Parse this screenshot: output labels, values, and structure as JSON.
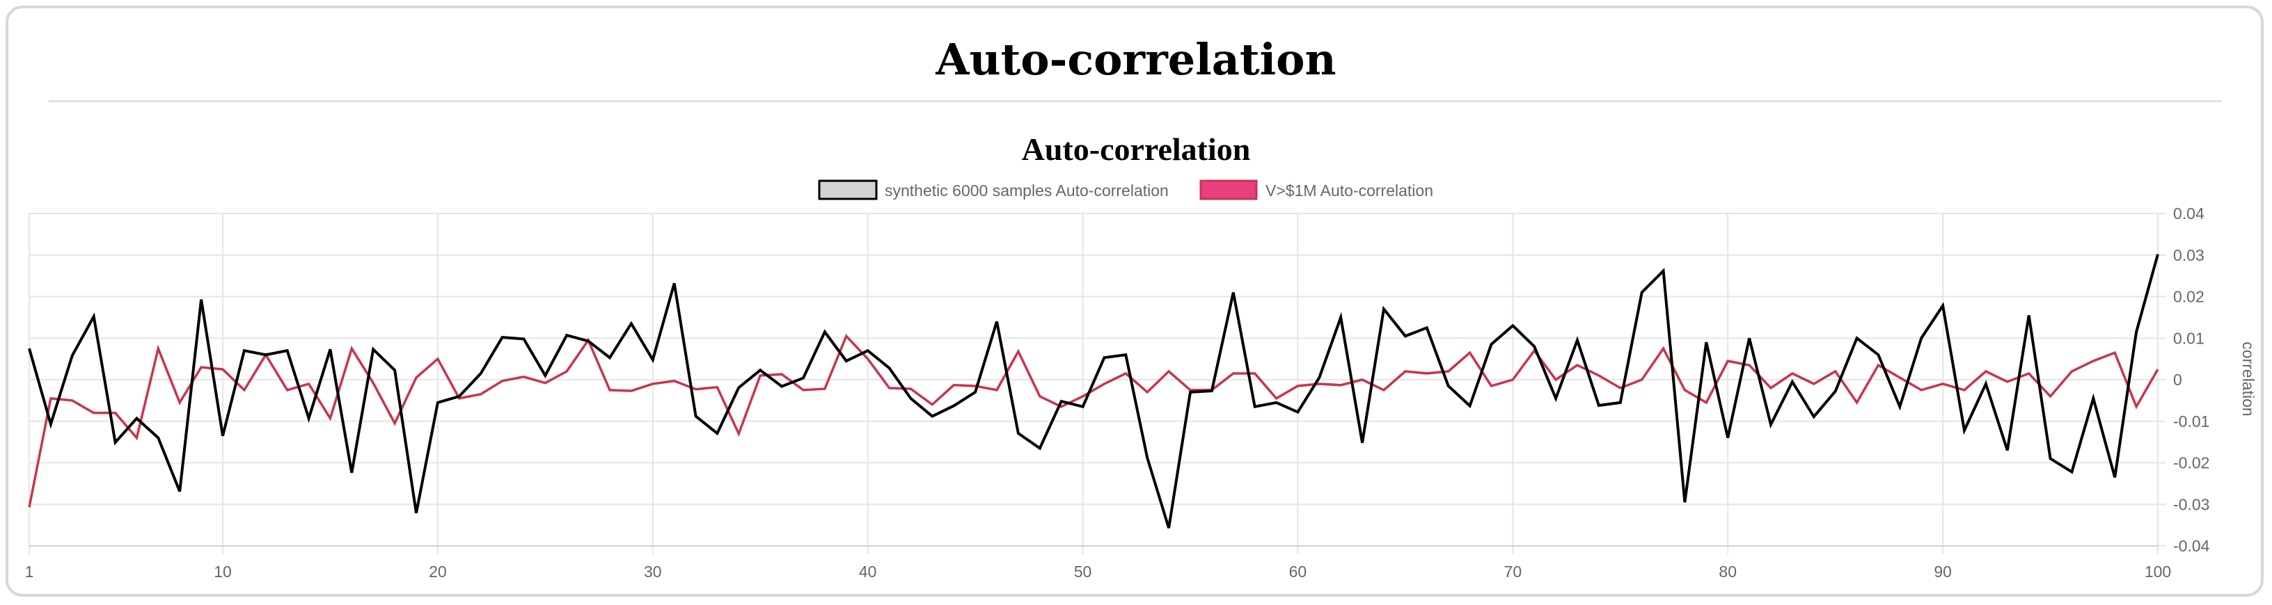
{
  "page": {
    "title": "Auto-correlation"
  },
  "chart_data": {
    "type": "line",
    "title": "Auto-correlation",
    "xlabel": "",
    "ylabel": "correlation",
    "x": [
      1,
      2,
      3,
      4,
      5,
      6,
      7,
      8,
      9,
      10,
      11,
      12,
      13,
      14,
      15,
      16,
      17,
      18,
      19,
      20,
      21,
      22,
      23,
      24,
      25,
      26,
      27,
      28,
      29,
      30,
      31,
      32,
      33,
      34,
      35,
      36,
      37,
      38,
      39,
      40,
      41,
      42,
      43,
      44,
      45,
      46,
      47,
      48,
      49,
      50,
      51,
      52,
      53,
      54,
      55,
      56,
      57,
      58,
      59,
      60,
      61,
      62,
      63,
      64,
      65,
      66,
      67,
      68,
      69,
      70,
      71,
      72,
      73,
      74,
      75,
      76,
      77,
      78,
      79,
      80,
      81,
      82,
      83,
      84,
      85,
      86,
      87,
      88,
      89,
      90,
      91,
      92,
      93,
      94,
      95,
      96,
      97,
      98,
      99,
      100
    ],
    "xlim": [
      1,
      100
    ],
    "ylim": [
      -0.04,
      0.04
    ],
    "x_ticks": [
      1,
      10,
      20,
      30,
      40,
      50,
      60,
      70,
      80,
      90,
      100
    ],
    "x_gridlines": [
      1,
      10,
      20,
      30,
      40,
      50,
      60,
      70,
      80,
      90,
      100
    ],
    "y_ticks": [
      0.04,
      0.03,
      0.02,
      0.01,
      0,
      -0.01,
      -0.02,
      -0.03,
      -0.04
    ],
    "y_tick_labels": [
      "0.04",
      "0.03",
      "0.02",
      "0.01",
      "0",
      "-0.01",
      "-0.02",
      "-0.03",
      "-0.04"
    ],
    "y_axis_position": "right",
    "grid": true,
    "legend_position": "top",
    "series": [
      {
        "name": "synthetic 6000 samples Auto-correlation",
        "color": "#000000",
        "legend_fill": "#d3d3d3",
        "values": [
          0.0075,
          -0.0107,
          0.0058,
          0.0152,
          -0.0151,
          -0.0093,
          -0.014,
          -0.0269,
          0.0193,
          -0.0135,
          0.007,
          0.006,
          0.007,
          -0.0093,
          0.0073,
          -0.0224,
          0.0073,
          0.0023,
          -0.0321,
          -0.0055,
          -0.004,
          0.0015,
          0.0102,
          0.0098,
          0.001,
          0.0107,
          0.0093,
          0.0053,
          0.0135,
          0.0048,
          0.0232,
          -0.0088,
          -0.0129,
          -0.0019,
          0.0023,
          -0.0016,
          0.0004,
          0.0115,
          0.0045,
          0.007,
          0.0028,
          -0.0045,
          -0.0088,
          -0.0063,
          -0.003,
          0.014,
          -0.0129,
          -0.0165,
          -0.0052,
          -0.0065,
          0.0053,
          0.006,
          -0.0188,
          -0.0357,
          -0.003,
          -0.0027,
          0.021,
          -0.0065,
          -0.0055,
          -0.0078,
          0.0005,
          0.015,
          -0.0152,
          0.017,
          0.0105,
          0.0125,
          -0.0015,
          -0.0063,
          0.0085,
          0.013,
          0.008,
          -0.0045,
          0.0095,
          -0.0062,
          -0.0055,
          0.021,
          0.0262,
          -0.0295,
          0.009,
          -0.014,
          0.01,
          -0.0108,
          -0.0005,
          -0.0089,
          -0.0028,
          0.01,
          0.006,
          -0.0065,
          0.01,
          0.0178,
          -0.0122,
          -0.001,
          -0.017,
          0.0155,
          -0.019,
          -0.0222,
          -0.0045,
          -0.0235,
          0.0115,
          0.0302
        ]
      },
      {
        "name": "V>$1M  Auto-correlation",
        "color": "#c8354d",
        "legend_fill": "#e8407f",
        "values": [
          -0.0307,
          -0.0045,
          -0.005,
          -0.008,
          -0.008,
          -0.014,
          0.0075,
          -0.0055,
          0.003,
          0.0025,
          -0.0025,
          0.006,
          -0.0025,
          -0.001,
          -0.0093,
          0.0075,
          -0.0008,
          -0.0105,
          0.0005,
          0.005,
          -0.0045,
          -0.0035,
          -0.0003,
          0.0007,
          -0.0008,
          0.002,
          0.0095,
          -0.0025,
          -0.0027,
          -0.001,
          -0.0003,
          -0.0023,
          -0.0018,
          -0.013,
          0.001,
          0.0013,
          -0.0025,
          -0.0022,
          0.0105,
          0.005,
          -0.002,
          -0.0022,
          -0.006,
          -0.0013,
          -0.0015,
          -0.0025,
          0.0068,
          -0.004,
          -0.0065,
          -0.004,
          -0.001,
          0.0015,
          -0.003,
          0.002,
          -0.0025,
          -0.0025,
          0.0015,
          0.0015,
          -0.0045,
          -0.0015,
          -0.001,
          -0.0013,
          0.0,
          -0.0025,
          0.002,
          0.0015,
          0.002,
          0.0065,
          -0.0015,
          0.0,
          0.007,
          0.0,
          0.0035,
          0.001,
          -0.002,
          0.0,
          0.0075,
          -0.0025,
          -0.0055,
          0.0045,
          0.0035,
          -0.002,
          0.0015,
          -0.001,
          0.002,
          -0.0055,
          0.0035,
          0.0005,
          -0.0025,
          -0.001,
          -0.0025,
          0.002,
          -0.0005,
          0.0015,
          -0.004,
          0.002,
          0.0045,
          0.0065,
          -0.0065,
          0.0025
        ]
      }
    ]
  }
}
